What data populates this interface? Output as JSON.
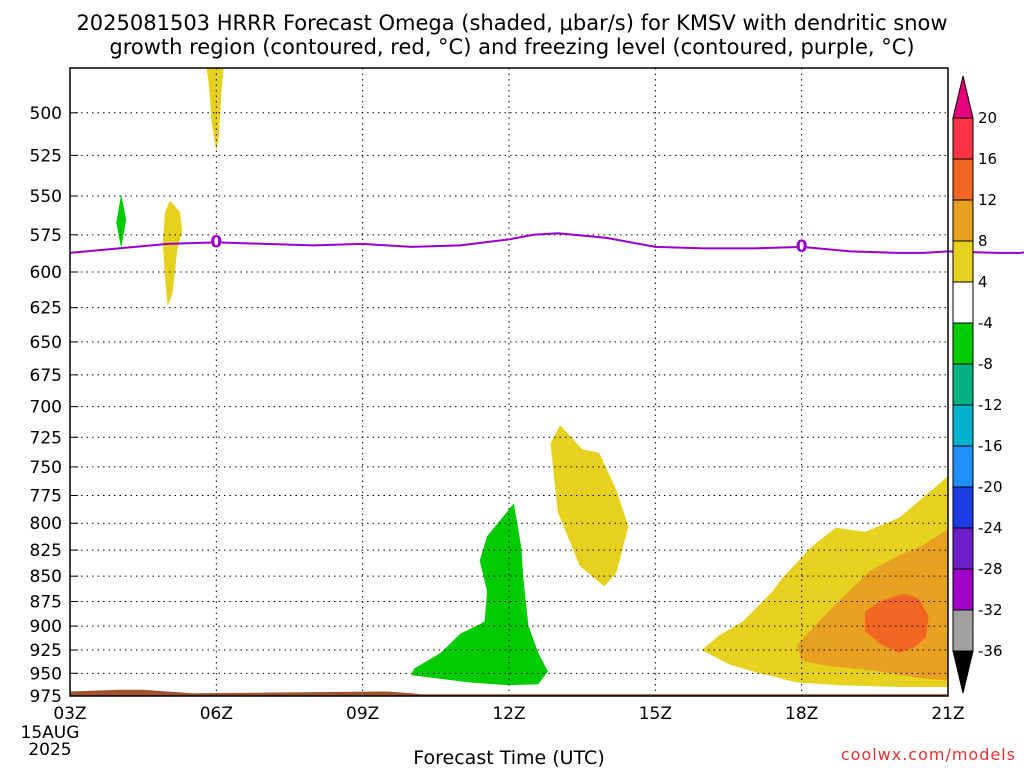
{
  "chart_data": {
    "type": "area",
    "title": "2025081503 HRRR Forecast Omega (shaded, μbar/s) for KMSV with dendritic snow",
    "subtitle": "growth region (contoured, red, °C) and freezing level (contoured, purple, °C)",
    "xlabel": "Forecast Time (UTC)",
    "x_ticks": [
      "03Z",
      "06Z",
      "09Z",
      "12Z",
      "15Z",
      "18Z",
      "21Z"
    ],
    "x_date_lines": [
      "15AUG",
      "2025"
    ],
    "y_ticks": [
      500,
      525,
      550,
      575,
      600,
      625,
      650,
      675,
      700,
      725,
      750,
      775,
      800,
      825,
      850,
      875,
      900,
      925,
      950,
      975
    ],
    "ylim": [
      975,
      475
    ],
    "y_log_pressure": true,
    "grid": true,
    "colorbar": {
      "labels": [
        "20",
        "16",
        "12",
        "8",
        "4",
        "-4",
        "-8",
        "-12",
        "-16",
        "-20",
        "-24",
        "-28",
        "-32",
        "-36"
      ],
      "colors": [
        "#ff3344",
        "#f26522",
        "#e8a020",
        "#e6d21e",
        "#ffffff",
        "#00cc00",
        "#00b27f",
        "#00b2cc",
        "#1e90ff",
        "#1e3ce6",
        "#6e1ec8",
        "#a000c8",
        "#a0a0a0"
      ],
      "top_arrow_color": "#e6007e",
      "bottom_arrow_color": "#000000"
    },
    "freezing_level": {
      "label": "0",
      "color": "#9900cc",
      "label_hours": [
        3,
        15
      ],
      "hours": [
        0,
        1,
        2,
        3,
        4,
        5,
        6,
        7,
        8,
        9,
        9.5,
        10,
        11,
        11.5,
        12,
        13,
        14,
        15,
        16,
        17,
        17.5,
        18,
        19,
        19.5,
        20
      ],
      "pressure": [
        587,
        584,
        581,
        580,
        581,
        582,
        581,
        583,
        582,
        578,
        575,
        574,
        577,
        580,
        583,
        584,
        584,
        583,
        586,
        587,
        587,
        586,
        587,
        587,
        584
      ]
    },
    "omega_shades": [
      {
        "color": "#e6d21e",
        "points": [
          [
            3.0,
            475
          ],
          [
            3.15,
            475
          ],
          [
            3.1,
            490
          ],
          [
            3.05,
            515
          ],
          [
            3.0,
            522
          ],
          [
            2.9,
            505
          ],
          [
            2.85,
            485
          ],
          [
            2.8,
            475
          ]
        ]
      },
      {
        "color": "#e6d21e",
        "points": [
          [
            2.05,
            553
          ],
          [
            2.25,
            560
          ],
          [
            2.3,
            572
          ],
          [
            2.2,
            585
          ],
          [
            2.15,
            600
          ],
          [
            2.1,
            615
          ],
          [
            2.0,
            624
          ],
          [
            1.95,
            605
          ],
          [
            1.9,
            580
          ],
          [
            1.95,
            560
          ]
        ]
      },
      {
        "color": "#00cc00",
        "points": [
          [
            1.05,
            549
          ],
          [
            1.15,
            565
          ],
          [
            1.05,
            584
          ],
          [
            0.95,
            567
          ]
        ]
      },
      {
        "color": "#e6d21e",
        "points": [
          [
            10.05,
            715
          ],
          [
            10.5,
            735
          ],
          [
            10.85,
            738
          ],
          [
            11.2,
            770
          ],
          [
            11.45,
            803
          ],
          [
            11.2,
            847
          ],
          [
            10.95,
            860
          ],
          [
            10.45,
            840
          ],
          [
            10.0,
            790
          ],
          [
            9.85,
            730
          ]
        ]
      },
      {
        "color": "#00cc00",
        "points": [
          [
            9.1,
            782
          ],
          [
            9.25,
            822
          ],
          [
            9.3,
            855
          ],
          [
            9.4,
            900
          ],
          [
            9.6,
            928
          ],
          [
            9.8,
            948
          ],
          [
            9.6,
            962
          ],
          [
            9.0,
            963
          ],
          [
            8.2,
            960
          ],
          [
            7.0,
            952
          ],
          [
            7.05,
            945
          ],
          [
            7.6,
            928
          ],
          [
            8.0,
            908
          ],
          [
            8.4,
            898
          ],
          [
            8.5,
            895
          ],
          [
            8.55,
            865
          ],
          [
            8.4,
            835
          ],
          [
            8.55,
            812
          ]
        ]
      },
      {
        "color": "#e6d21e",
        "points": [
          [
            12.95,
            925
          ],
          [
            13.3,
            910
          ],
          [
            13.8,
            895
          ],
          [
            14.4,
            865
          ],
          [
            14.6,
            852
          ],
          [
            15.2,
            822
          ],
          [
            15.7,
            804
          ],
          [
            16.3,
            808
          ],
          [
            17.0,
            795
          ],
          [
            18.0,
            758
          ],
          [
            18.0,
            965
          ],
          [
            17.0,
            965
          ],
          [
            15.8,
            963
          ],
          [
            14.9,
            960
          ],
          [
            14.0,
            948
          ],
          [
            13.5,
            940
          ]
        ]
      },
      {
        "color": "#e8a020",
        "points": [
          [
            14.9,
            920
          ],
          [
            15.3,
            898
          ],
          [
            15.9,
            868
          ],
          [
            16.4,
            845
          ],
          [
            17.0,
            830
          ],
          [
            17.5,
            820
          ],
          [
            18.0,
            805
          ],
          [
            18.0,
            958
          ],
          [
            17.4,
            955
          ],
          [
            16.5,
            947
          ],
          [
            15.5,
            942
          ],
          [
            15.0,
            936
          ]
        ]
      },
      {
        "color": "#f26522",
        "points": [
          [
            16.3,
            885
          ],
          [
            16.6,
            875
          ],
          [
            17.1,
            867
          ],
          [
            17.4,
            872
          ],
          [
            17.6,
            890
          ],
          [
            17.55,
            912
          ],
          [
            17.3,
            922
          ],
          [
            17.0,
            928
          ],
          [
            16.6,
            918
          ],
          [
            16.3,
            905
          ]
        ]
      }
    ],
    "terrain": {
      "color": "#a0522d",
      "hours": [
        0,
        1,
        1.5,
        2,
        2.5,
        6.5,
        7.0,
        7.2,
        18
      ],
      "pressure": [
        970,
        968,
        968,
        970,
        972,
        970,
        972,
        973,
        973
      ]
    }
  },
  "footer": {
    "credit": "coolwx.com/models"
  }
}
